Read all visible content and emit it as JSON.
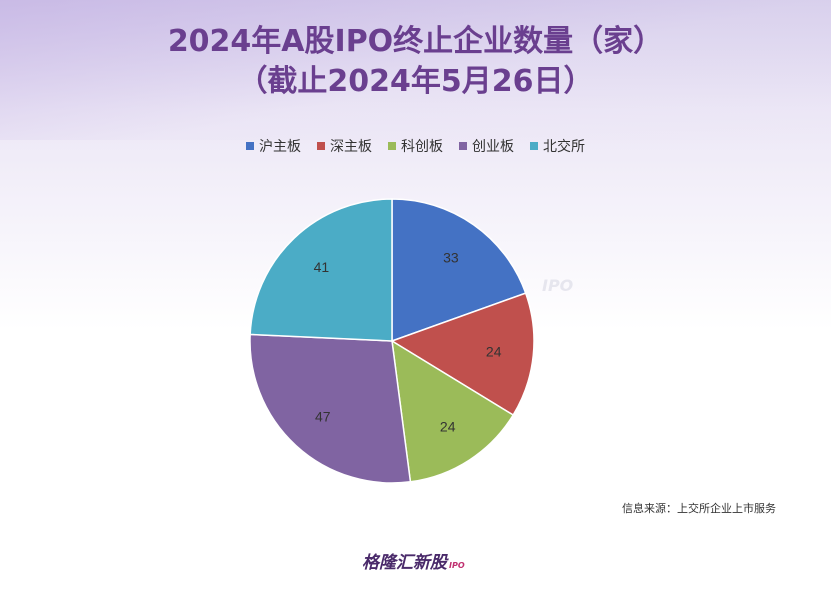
{
  "chart_data": {
    "type": "pie",
    "title_line1": "2024年A股IPO终止企业数量（家）",
    "title_line2": "（截止2024年5月26日）",
    "categories": [
      "沪主板",
      "深主板",
      "科创板",
      "创业板",
      "北交所"
    ],
    "values": [
      33,
      24,
      24,
      47,
      41
    ],
    "colors": [
      "#4472c4",
      "#c0504d",
      "#9bbb59",
      "#8064a2",
      "#4bacc6"
    ],
    "legend_position": "top",
    "start_angle_deg": 0,
    "direction": "clockwise"
  },
  "watermark": {
    "text": "格隆汇新股",
    "sub": "IPO"
  },
  "source": "信息来源：上交所企业上市服务",
  "footer_logo": {
    "text": "格隆汇新股",
    "sub": "IPO"
  }
}
